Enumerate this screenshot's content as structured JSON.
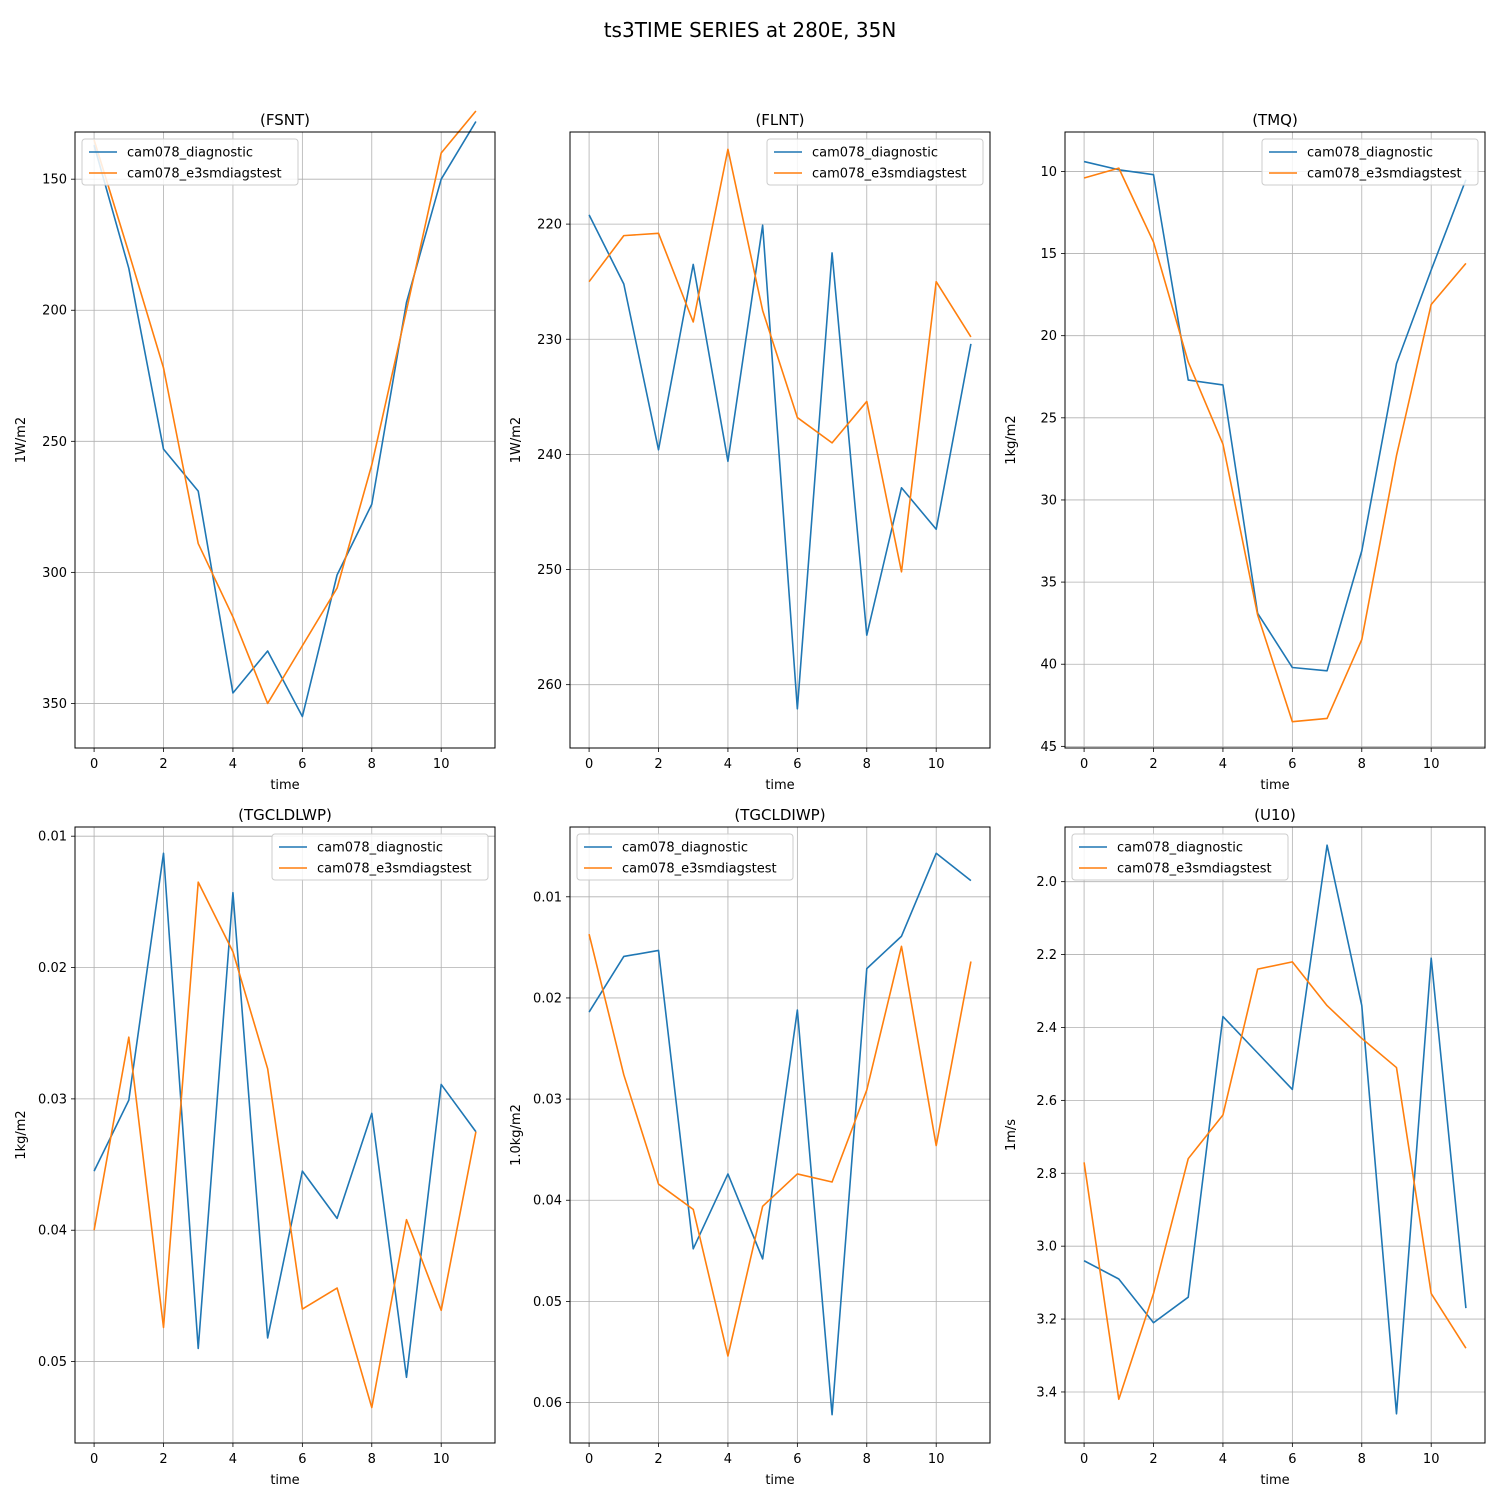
{
  "figure": {
    "title": "ts3TIME SERIES at 280E, 35N"
  },
  "colors": {
    "series0": "#1f77b4",
    "series1": "#ff7f0e",
    "grid": "#b0b0b0"
  },
  "chart_data": [
    {
      "type": "line",
      "title": "(FSNT)",
      "xlabel": "time",
      "ylabel": "1W/m2",
      "xlim": [
        -0.55,
        11.55
      ],
      "ylim": [
        367,
        132
      ],
      "y_inverted": true,
      "xticks": [
        0,
        2,
        4,
        6,
        8,
        10
      ],
      "yticks": [
        150,
        200,
        250,
        300,
        350
      ],
      "grid": true,
      "legend": "upper-left",
      "x": [
        0,
        1,
        2,
        3,
        4,
        5,
        6,
        7,
        8,
        9,
        10,
        11
      ],
      "series": [
        {
          "name": "cam078_diagnostic",
          "values": [
            137,
            184,
            253,
            269,
            346,
            330,
            355,
            301,
            274,
            197,
            150,
            128
          ]
        },
        {
          "name": "cam078_e3smdiagstest",
          "values": [
            135,
            178,
            222,
            289,
            317,
            350,
            328,
            306,
            259,
            200,
            140,
            124
          ]
        }
      ]
    },
    {
      "type": "line",
      "title": "(FLNT)",
      "xlabel": "time",
      "ylabel": "1W/m2",
      "xlim": [
        -0.55,
        11.55
      ],
      "ylim": [
        265.5,
        212
      ],
      "y_inverted": true,
      "xticks": [
        0,
        2,
        4,
        6,
        8,
        10
      ],
      "yticks": [
        220,
        230,
        240,
        250,
        260
      ],
      "grid": true,
      "legend": "upper-right",
      "x": [
        0,
        1,
        2,
        3,
        4,
        5,
        6,
        7,
        8,
        9,
        10,
        11
      ],
      "series": [
        {
          "name": "cam078_diagnostic",
          "values": [
            219.2,
            225.2,
            239.6,
            223.5,
            240.6,
            220.1,
            262.1,
            222.5,
            255.7,
            242.9,
            246.5,
            230.4
          ]
        },
        {
          "name": "cam078_e3smdiagstest",
          "values": [
            225.0,
            221.0,
            220.8,
            228.5,
            213.5,
            227.5,
            236.8,
            239.0,
            235.4,
            250.2,
            225.0,
            229.8
          ]
        }
      ]
    },
    {
      "type": "line",
      "title": "(TMQ)",
      "xlabel": "time",
      "ylabel": "1kg/m2",
      "xlim": [
        -0.55,
        11.55
      ],
      "ylim": [
        45.1,
        7.6
      ],
      "y_inverted": true,
      "xticks": [
        0,
        2,
        4,
        6,
        8,
        10
      ],
      "yticks": [
        10,
        15,
        20,
        25,
        30,
        35,
        40,
        45
      ],
      "grid": true,
      "legend": "upper-right",
      "x": [
        0,
        1,
        2,
        3,
        4,
        5,
        6,
        7,
        8,
        9,
        10,
        11
      ],
      "series": [
        {
          "name": "cam078_diagnostic",
          "values": [
            9.4,
            9.9,
            10.2,
            22.7,
            23.0,
            36.9,
            40.2,
            40.4,
            33.1,
            21.7,
            16.0,
            10.5
          ]
        },
        {
          "name": "cam078_e3smdiagstest",
          "values": [
            10.4,
            9.8,
            14.3,
            21.6,
            26.6,
            37.0,
            43.5,
            43.3,
            38.5,
            27.3,
            18.1,
            15.6
          ]
        }
      ]
    },
    {
      "type": "line",
      "title": "(TGCLDLWP)",
      "xlabel": "time",
      "ylabel": "1kg/m2",
      "xlim": [
        -0.55,
        11.55
      ],
      "ylim": [
        0.0562,
        0.0093
      ],
      "y_inverted": true,
      "xticks": [
        0,
        2,
        4,
        6,
        8,
        10
      ],
      "yticks": [
        0.01,
        0.02,
        0.03,
        0.04,
        0.05
      ],
      "ytick_labels": [
        "0.01",
        "0.02",
        "0.03",
        "0.04",
        "0.05"
      ],
      "grid": true,
      "legend": "upper-right",
      "x": [
        0,
        1,
        2,
        3,
        4,
        5,
        6,
        7,
        8,
        9,
        10,
        11
      ],
      "series": [
        {
          "name": "cam078_diagnostic",
          "values": [
            0.0355,
            0.0301,
            0.0113,
            0.049,
            0.0143,
            0.0482,
            0.0355,
            0.0391,
            0.0311,
            0.0512,
            0.0289,
            0.0325
          ]
        },
        {
          "name": "cam078_e3smdiagstest",
          "values": [
            0.04,
            0.0253,
            0.0474,
            0.0135,
            0.0188,
            0.0277,
            0.046,
            0.0444,
            0.0535,
            0.0392,
            0.0461,
            0.0325
          ]
        }
      ]
    },
    {
      "type": "line",
      "title": "(TGCLDIWP)",
      "xlabel": "time",
      "ylabel": "1.0kg/m2",
      "xlim": [
        -0.55,
        11.55
      ],
      "ylim": [
        0.064,
        0.0031
      ],
      "y_inverted": true,
      "xticks": [
        0,
        2,
        4,
        6,
        8,
        10
      ],
      "yticks": [
        0.01,
        0.02,
        0.03,
        0.04,
        0.05,
        0.06
      ],
      "ytick_labels": [
        "0.01",
        "0.02",
        "0.03",
        "0.04",
        "0.05",
        "0.06"
      ],
      "grid": true,
      "legend": "upper-left",
      "x": [
        0,
        1,
        2,
        3,
        4,
        5,
        6,
        7,
        8,
        9,
        10,
        11
      ],
      "series": [
        {
          "name": "cam078_diagnostic",
          "values": [
            0.0214,
            0.0159,
            0.0153,
            0.0448,
            0.0374,
            0.0458,
            0.0212,
            0.0612,
            0.0171,
            0.0139,
            0.0057,
            0.0084
          ]
        },
        {
          "name": "cam078_e3smdiagstest",
          "values": [
            0.0137,
            0.0276,
            0.0384,
            0.0409,
            0.0554,
            0.0406,
            0.0374,
            0.0382,
            0.0291,
            0.0149,
            0.0346,
            0.0164
          ]
        }
      ]
    },
    {
      "type": "line",
      "title": "(U10)",
      "xlabel": "time",
      "ylabel": "1m/s",
      "xlim": [
        -0.55,
        11.55
      ],
      "ylim": [
        3.54,
        1.85
      ],
      "y_inverted": true,
      "xticks": [
        0,
        2,
        4,
        6,
        8,
        10
      ],
      "yticks": [
        2.0,
        2.2,
        2.4,
        2.6,
        2.8,
        3.0,
        3.2,
        3.4
      ],
      "ytick_labels": [
        "2.0",
        "2.2",
        "2.4",
        "2.6",
        "2.8",
        "3.0",
        "3.2",
        "3.4"
      ],
      "grid": true,
      "legend": "upper-left",
      "x": [
        0,
        1,
        2,
        3,
        4,
        5,
        6,
        7,
        8,
        9,
        10,
        11
      ],
      "series": [
        {
          "name": "cam078_diagnostic",
          "values": [
            3.04,
            3.09,
            3.21,
            3.14,
            2.37,
            2.47,
            2.57,
            1.9,
            2.34,
            3.46,
            2.21,
            3.17
          ]
        },
        {
          "name": "cam078_e3smdiagstest",
          "values": [
            2.77,
            3.42,
            3.13,
            2.76,
            2.64,
            2.24,
            2.22,
            2.34,
            2.43,
            2.51,
            3.13,
            3.28
          ]
        }
      ]
    }
  ]
}
